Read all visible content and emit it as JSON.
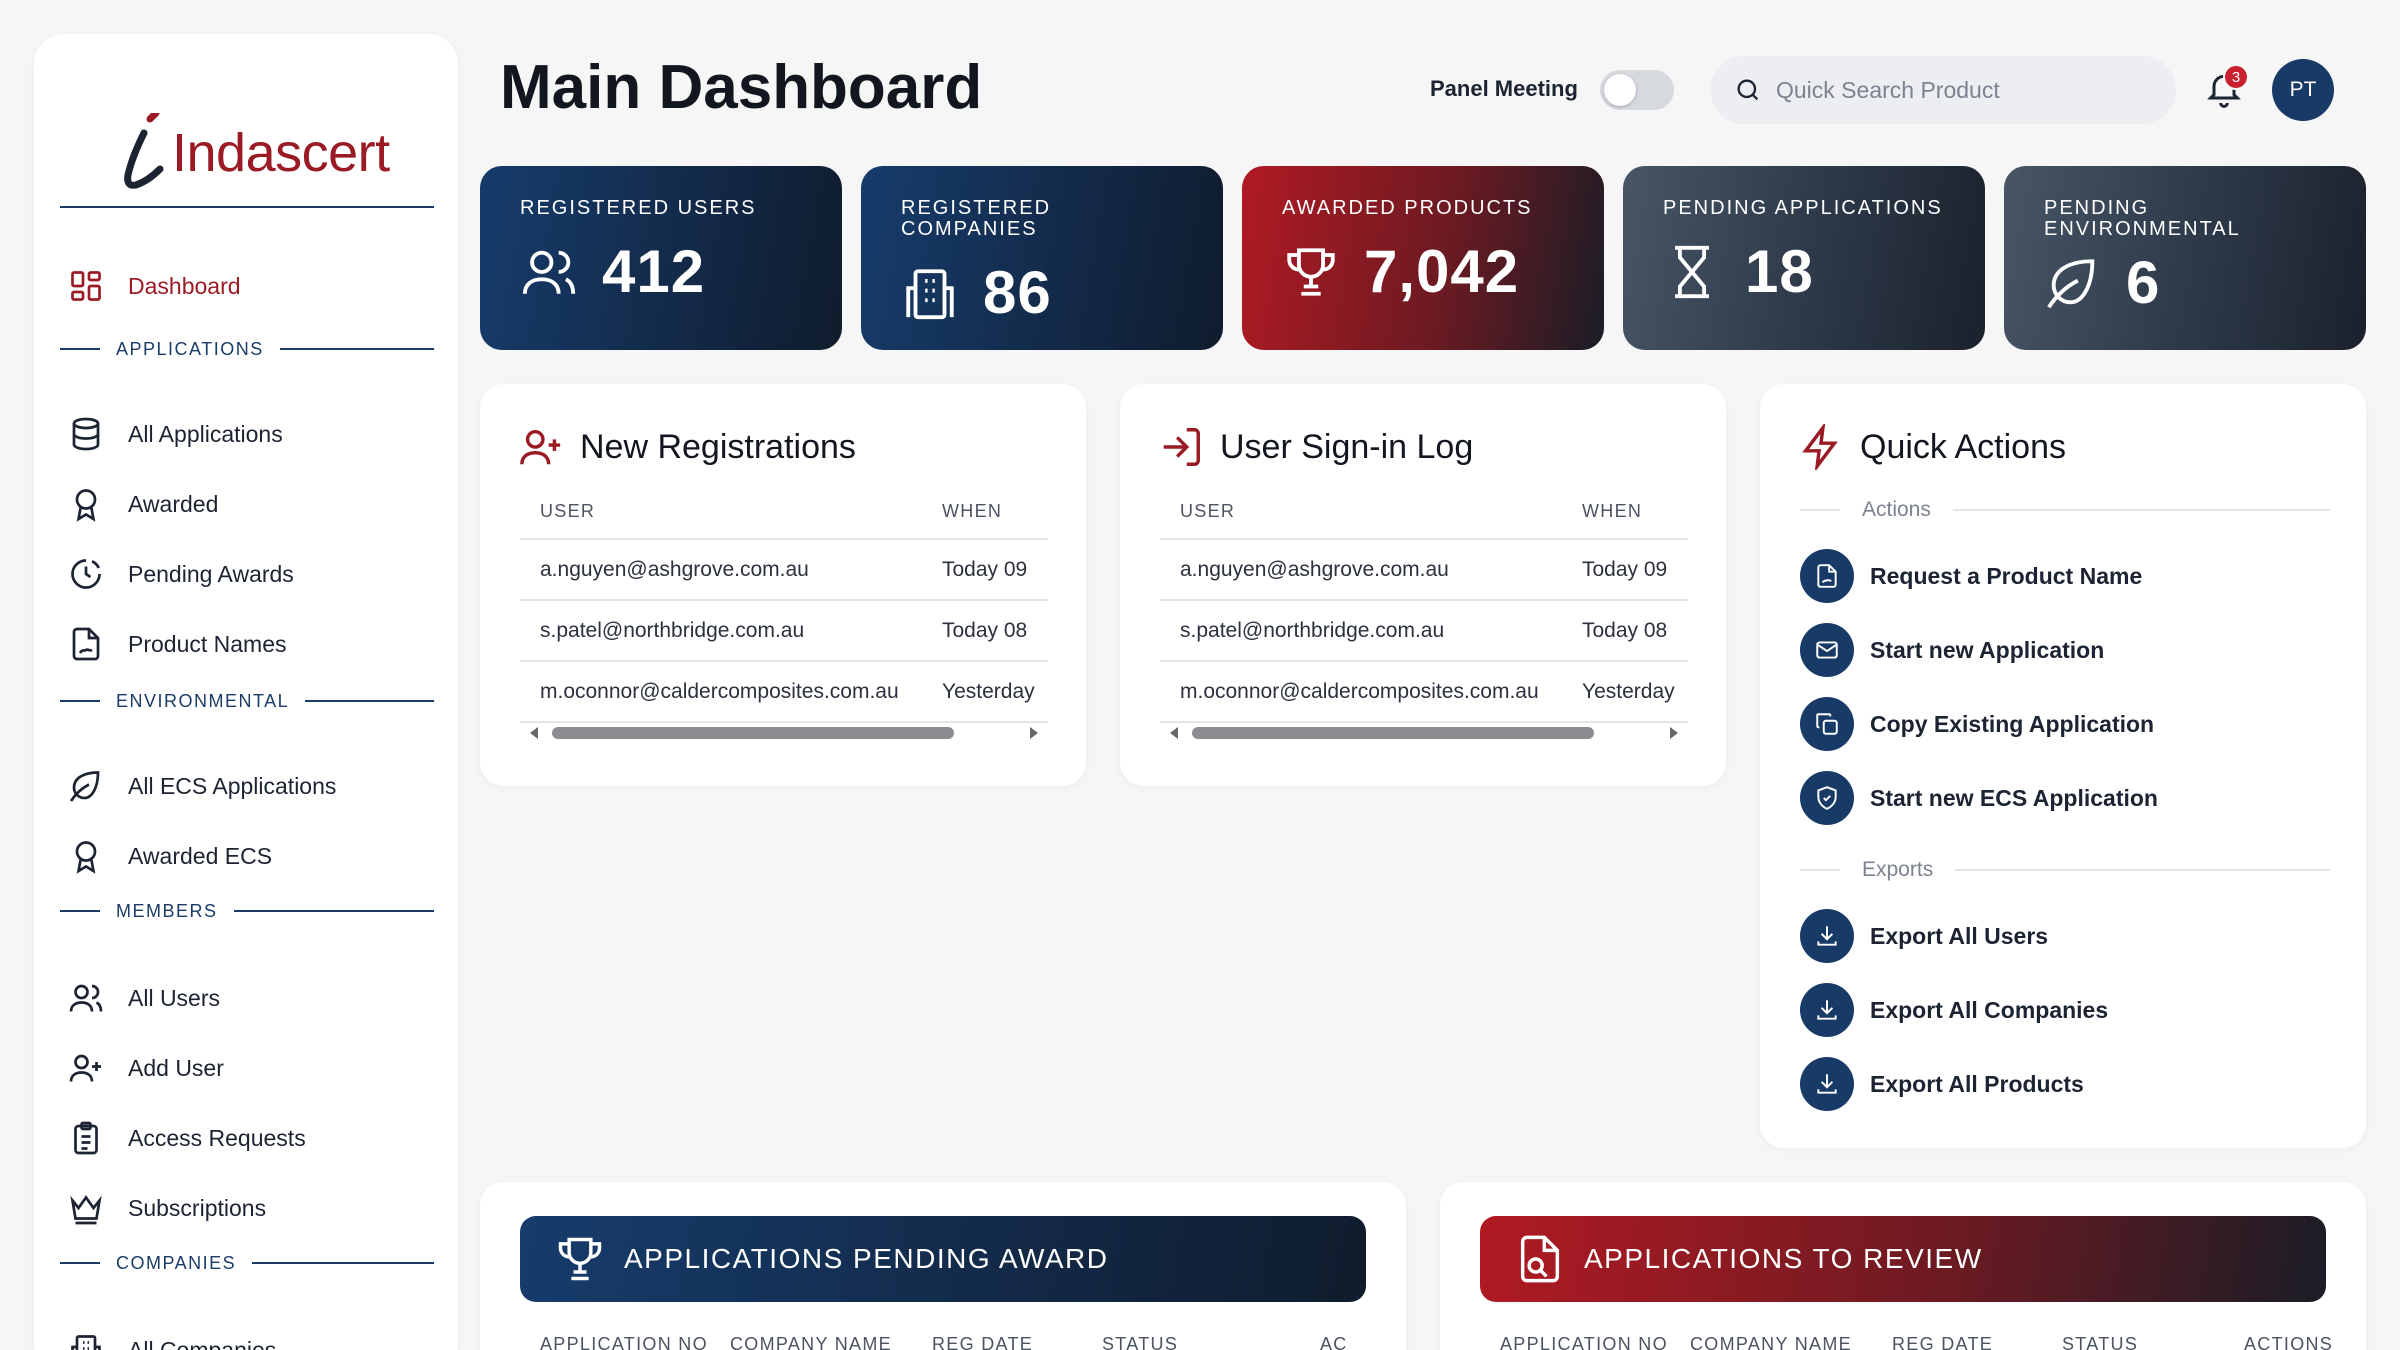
{
  "brand": {
    "name": "Indascert",
    "accent": "#9b1b25",
    "navy": "#173a66"
  },
  "sidebar": {
    "dashboard": "Dashboard",
    "sections": {
      "applications": "APPLICATIONS",
      "environmental": "ENVIRONMENTAL",
      "members": "MEMBERS",
      "companies": "COMPANIES"
    },
    "items": {
      "all_applications": "All Applications",
      "awarded": "Awarded",
      "pending_awards": "Pending Awards",
      "product_names": "Product Names",
      "all_ecs_applications": "All ECS Applications",
      "awarded_ecs": "Awarded ECS",
      "all_users": "All Users",
      "add_user": "Add User",
      "access_requests": "Access Requests",
      "subscriptions": "Subscriptions",
      "all_companies": "All Companies"
    }
  },
  "header": {
    "title": "Main Dashboard",
    "toggle_label": "Panel Meeting",
    "toggle_on": false,
    "search_placeholder": "Quick Search Product",
    "notification_count": "3",
    "avatar_initials": "PT"
  },
  "stats": [
    {
      "title": "REGISTERED USERS",
      "value": "412",
      "icon": "users-icon"
    },
    {
      "title": "REGISTERED COMPANIES",
      "value": "86",
      "icon": "building-icon"
    },
    {
      "title": "AWARDED PRODUCTS",
      "value": "7,042",
      "icon": "trophy-icon"
    },
    {
      "title": "PENDING APPLICATIONS",
      "value": "18",
      "icon": "hourglass-icon"
    },
    {
      "title": "PENDING ENVIRONMENTAL",
      "value": "6",
      "icon": "leaf-icon"
    }
  ],
  "new_registrations": {
    "title": "New Registrations",
    "columns": {
      "user": "USER",
      "when": "WHEN"
    },
    "rows": [
      {
        "user": "a.nguyen@ashgrove.com.au",
        "when": "Today 09"
      },
      {
        "user": "s.patel@northbridge.com.au",
        "when": "Today 08"
      },
      {
        "user": "m.oconnor@caldercomposites.com.au",
        "when": "Yesterday"
      }
    ]
  },
  "signin_log": {
    "title": "User Sign-in Log",
    "columns": {
      "user": "USER",
      "when": "WHEN"
    },
    "rows": [
      {
        "user": "a.nguyen@ashgrove.com.au",
        "when": "Today 09"
      },
      {
        "user": "s.patel@northbridge.com.au",
        "when": "Today 08"
      },
      {
        "user": "m.oconnor@caldercomposites.com.au",
        "when": "Yesterday"
      }
    ]
  },
  "quick_actions": {
    "title": "Quick Actions",
    "actions_label": "Actions",
    "exports_label": "Exports",
    "actions": [
      "Request a Product Name",
      "Start new Application",
      "Copy Existing Application",
      "Start new ECS Application"
    ],
    "exports": [
      "Export All Users",
      "Export All Companies",
      "Export All Products"
    ]
  },
  "pending_award": {
    "title": "APPLICATIONS PENDING AWARD",
    "columns": [
      "APPLICATION NO",
      "COMPANY NAME",
      "REG DATE",
      "STATUS",
      "AC"
    ]
  },
  "to_review": {
    "title": "APPLICATIONS TO REVIEW",
    "columns": [
      "APPLICATION NO",
      "COMPANY NAME",
      "REG DATE",
      "STATUS",
      "ACTIONS"
    ]
  }
}
